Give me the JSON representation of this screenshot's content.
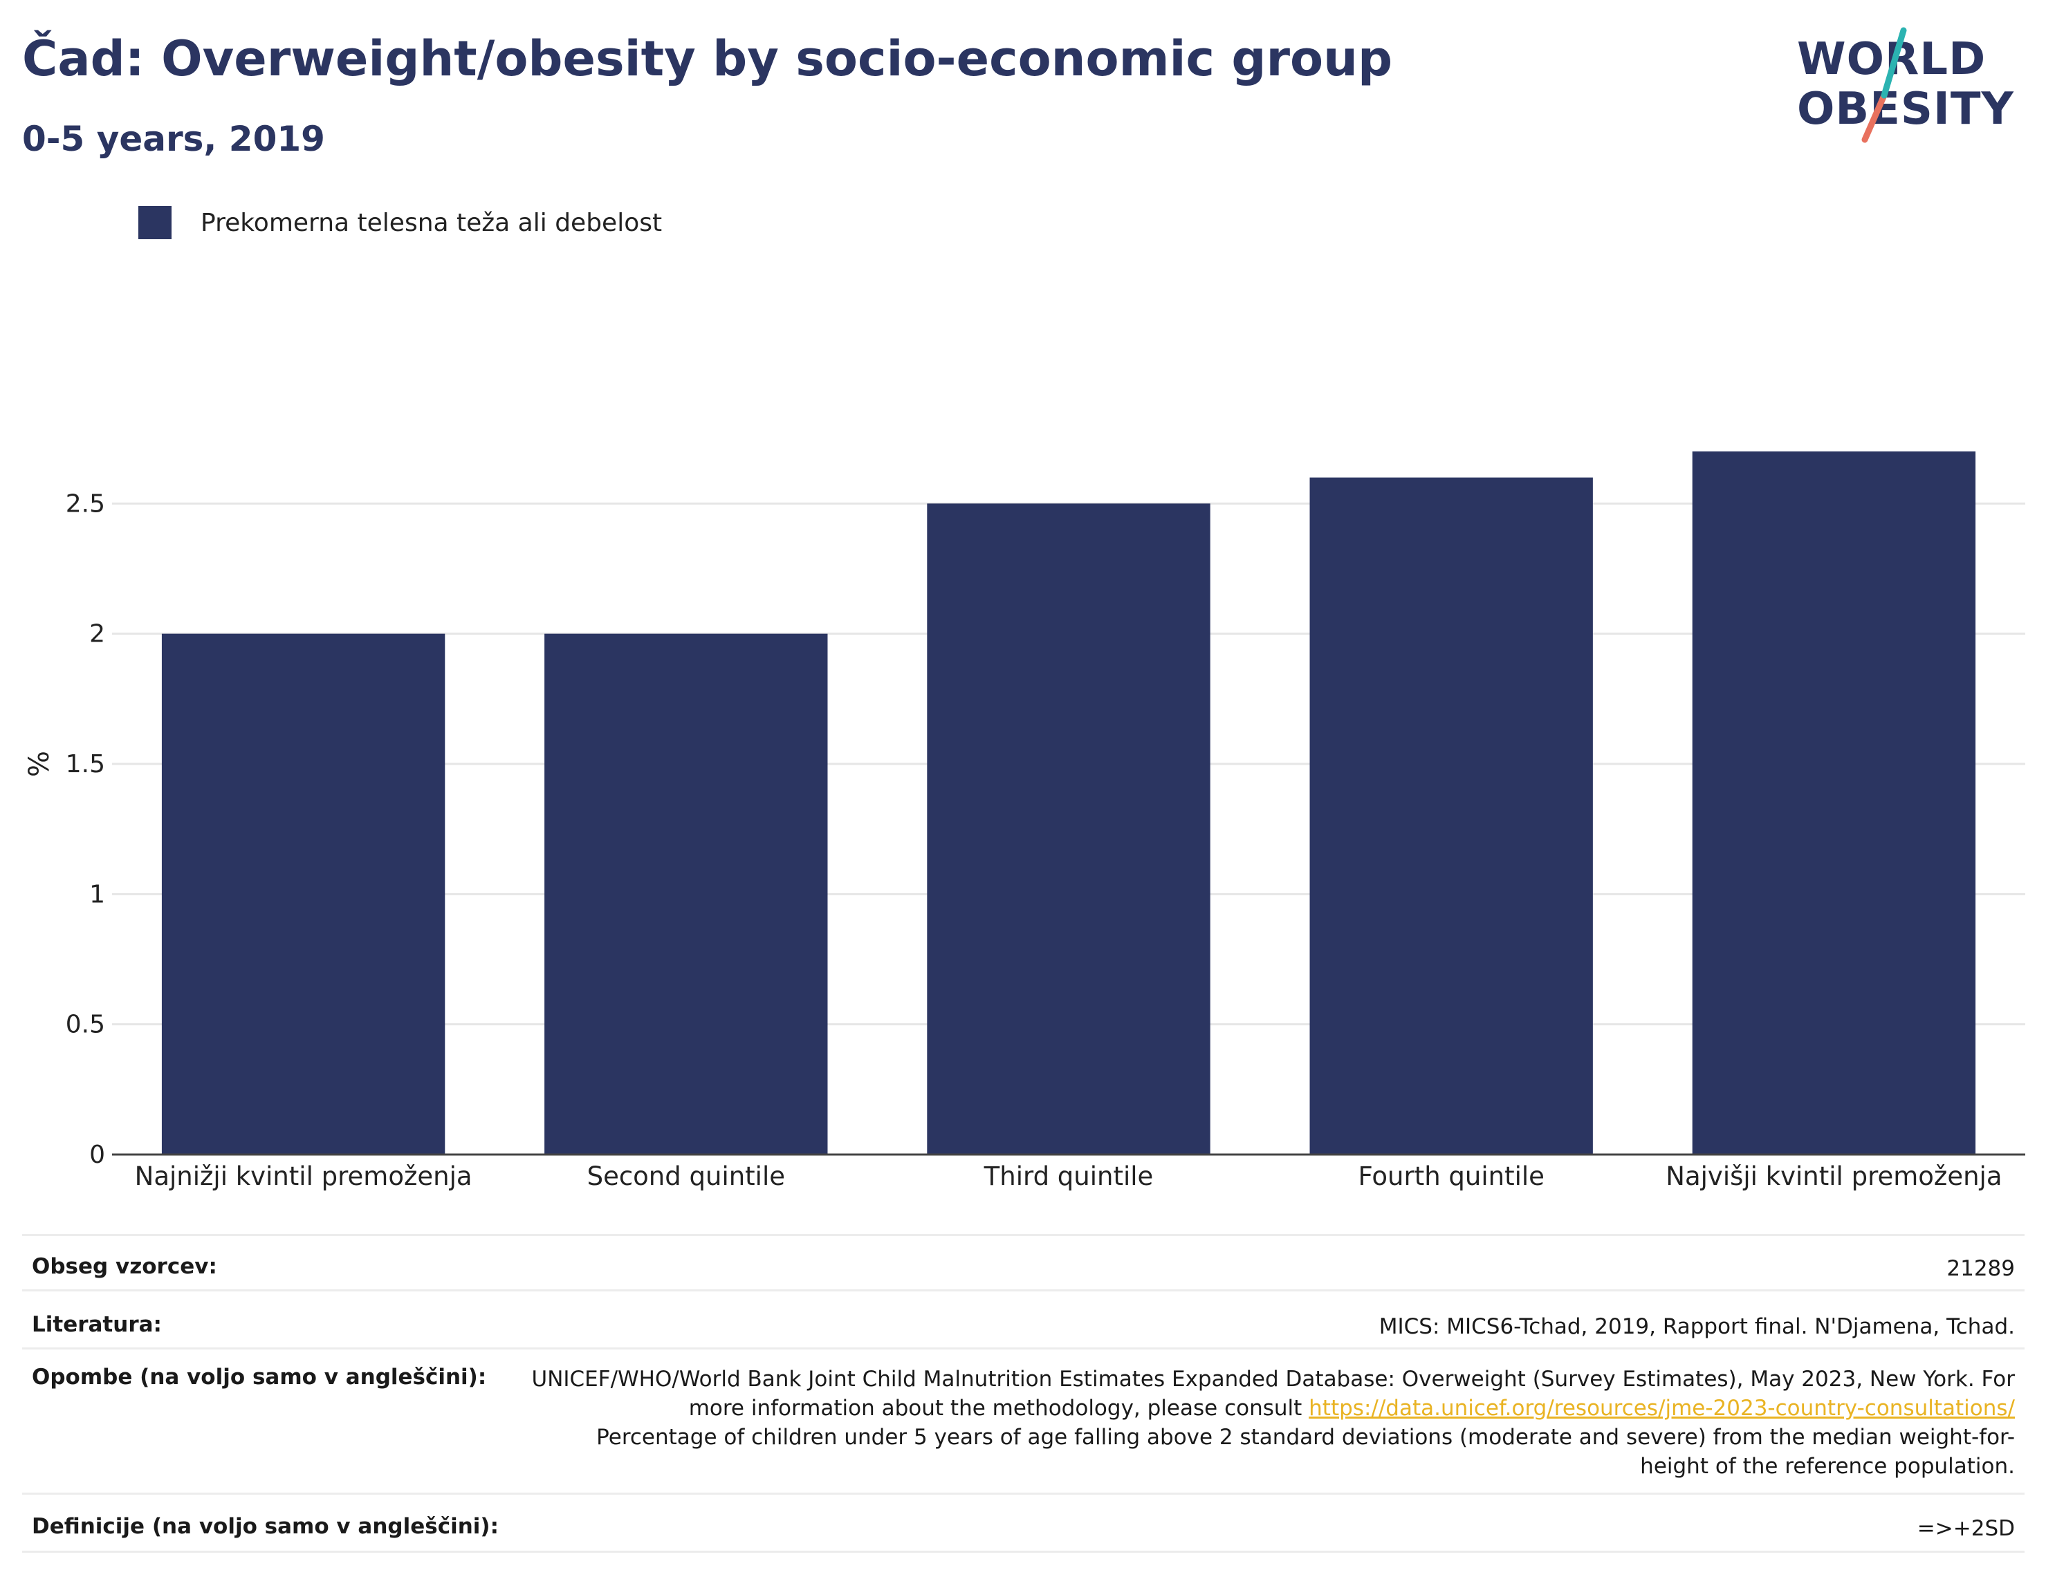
{
  "header": {
    "title": "Čad: Overweight/obesity by socio-economic group",
    "subtitle": "0-5 years, 2019"
  },
  "logo": {
    "line1": "WORLD",
    "line2": "OBESITY",
    "colors": {
      "text": "#2b3561",
      "slash_top": "#2bb3b1",
      "slash_bottom": "#e8715e"
    }
  },
  "colors": {
    "bar": "#2b3561",
    "grid": "#e6e6e6",
    "axis": "#444444",
    "link": "#e9b323"
  },
  "chart_data": {
    "type": "bar",
    "categories": [
      "Najnižji kvintil premoženja",
      "Second quintile",
      "Third quintile",
      "Fourth quintile",
      "Najvišji kvintil premoženja"
    ],
    "series": [
      {
        "name": "Prekomerna telesna teža ali debelost",
        "values": [
          2.0,
          2.0,
          2.5,
          2.6,
          2.7
        ]
      }
    ],
    "title": "Čad: Overweight/obesity by socio-economic group",
    "subtitle": "0-5 years, 2019",
    "xlabel": "",
    "ylabel": "%",
    "ylim": [
      0,
      3.0
    ],
    "yticks": [
      0,
      0.5,
      1,
      1.5,
      2,
      2.5
    ],
    "ytick_labels": [
      "0",
      "0.5",
      "1",
      "1.5",
      "2",
      "2.5"
    ],
    "grid": true,
    "legend_position": "top-left"
  },
  "info": {
    "sample_label": "Obseg vzorcev:",
    "sample_value": "21289",
    "literature_label": "Literatura:",
    "literature_value": "MICS: MICS6-Tchad, 2019, Rapport final. N'Djamena, Tchad.",
    "notes_label": "Opombe (na voljo samo v angleščini):",
    "notes_text1": "UNICEF/WHO/World Bank Joint Child Malnutrition Estimates Expanded Database: Overweight (Survey Estimates), May 2023, New York. For more information about the methodology, please consult",
    "notes_link": "https://data.unicef.org/resources/jme-2023-country-consultations/",
    "notes_text2": "Percentage of children under 5 years of age falling above 2 standard deviations (moderate and severe) from the median weight-for-height of the reference population.",
    "definitions_label": "Definicije (na voljo samo v angleščini):",
    "definitions_value": "=>+2SD"
  }
}
